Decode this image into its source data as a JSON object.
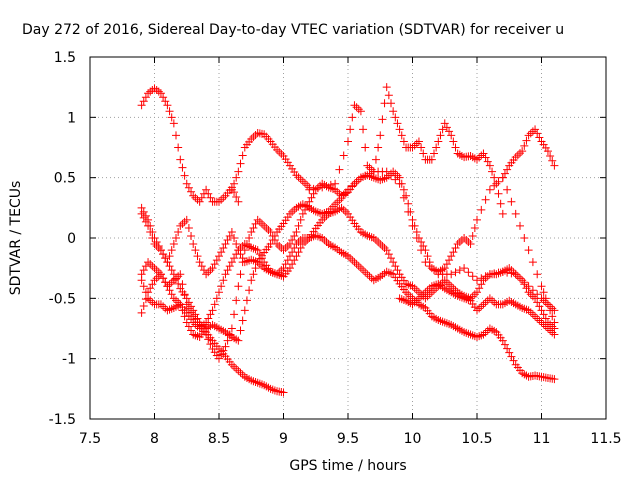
{
  "chart_data": {
    "type": "scatter",
    "title": "Day 272 of 2016, Sidereal Day-to-day VTEC variation (SDTVAR) for receiver u",
    "xlabel": "GPS time / hours",
    "ylabel": "SDTVAR / TECUs",
    "xlim": [
      7.5,
      11.5
    ],
    "ylim": [
      -1.5,
      1.5
    ],
    "xticks": [
      "7.5",
      "8",
      "8.5",
      "9",
      "9.5",
      "10",
      "10.5",
      "11",
      "11.5"
    ],
    "xtick_values": [
      7.5,
      8,
      8.5,
      9,
      9.5,
      10,
      10.5,
      11,
      11.5
    ],
    "yticks": [
      "1.5",
      "1",
      "0.5",
      "0",
      "-0.5",
      "-1",
      "-1.5"
    ],
    "ytick_values": [
      1.5,
      1,
      0.5,
      0,
      -0.5,
      -1,
      -1.5
    ],
    "grid": true,
    "marker": "plus",
    "color": "#ff0000",
    "series": [
      {
        "x": [
          7.9,
          7.95,
          8.0,
          8.05,
          8.1,
          8.15,
          8.2,
          8.25,
          8.3,
          8.35,
          8.4,
          8.45,
          8.5,
          8.55,
          8.6,
          8.65
        ],
        "y": [
          1.1,
          1.2,
          1.24,
          1.2,
          1.1,
          0.95,
          0.65,
          0.45,
          0.35,
          0.3,
          0.4,
          0.3,
          0.3,
          0.35,
          0.42,
          0.3
        ]
      },
      {
        "x": [
          8.6,
          8.65,
          8.7,
          8.75,
          8.8,
          8.85,
          8.9,
          8.95,
          9.0,
          9.05,
          9.1,
          9.15,
          9.2
        ],
        "y": [
          0.4,
          0.55,
          0.75,
          0.82,
          0.87,
          0.86,
          0.8,
          0.73,
          0.68,
          0.6,
          0.52,
          0.47,
          0.42
        ]
      },
      {
        "x": [
          9.2,
          9.3,
          9.4,
          9.5,
          9.55,
          9.6,
          9.65,
          9.7,
          9.75,
          9.8,
          9.85,
          9.9,
          9.95,
          10.0,
          10.05,
          10.1,
          10.15,
          10.2,
          10.25,
          10.3,
          10.35,
          10.4,
          10.45,
          10.5,
          10.55,
          10.6,
          10.65,
          10.7
        ],
        "y": [
          0.4,
          0.42,
          0.45,
          0.8,
          1.1,
          1.05,
          0.6,
          0.55,
          0.85,
          1.25,
          1.05,
          0.9,
          0.75,
          0.75,
          0.8,
          0.65,
          0.65,
          0.8,
          0.95,
          0.85,
          0.7,
          0.67,
          0.68,
          0.65,
          0.7,
          0.6,
          0.45,
          0.2
        ]
      },
      {
        "x": [
          10.7,
          10.75,
          10.8,
          10.85,
          10.9,
          10.95,
          11.0,
          11.05,
          11.1
        ],
        "y": [
          0.5,
          0.6,
          0.67,
          0.72,
          0.85,
          0.9,
          0.8,
          0.72,
          0.6
        ]
      },
      {
        "x": [
          7.9,
          7.95,
          8.0,
          8.05,
          8.1,
          8.15,
          8.2,
          8.25,
          8.3,
          8.35,
          8.4,
          8.45,
          8.5,
          8.55,
          8.6,
          8.65,
          8.7,
          8.75,
          8.8,
          8.85,
          8.9,
          8.95,
          9.0
        ],
        "y": [
          0.25,
          0.15,
          0.0,
          -0.1,
          -0.2,
          -0.3,
          -0.42,
          -0.5,
          -0.6,
          -0.7,
          -0.78,
          -0.85,
          -0.92,
          -0.98,
          -1.05,
          -1.1,
          -1.15,
          -1.18,
          -1.2,
          -1.22,
          -1.25,
          -1.27,
          -1.28
        ]
      },
      {
        "x": [
          7.9,
          7.95,
          8.0,
          8.05,
          8.1,
          8.15,
          8.2,
          8.25,
          8.3,
          8.35,
          8.4,
          8.45,
          8.5,
          8.55,
          8.6,
          8.65,
          8.7,
          8.75,
          8.8,
          8.85,
          8.9,
          8.95,
          9.0,
          9.05,
          9.1,
          9.15,
          9.2,
          9.25,
          9.3,
          9.35,
          9.4,
          9.45,
          9.5,
          9.6,
          9.7,
          9.8,
          9.9,
          10.0,
          10.1,
          10.2,
          10.3,
          10.4,
          10.5,
          10.6,
          10.7,
          10.8,
          10.9,
          11.0,
          11.05,
          11.1
        ],
        "y": [
          -0.62,
          -0.45,
          -0.35,
          -0.3,
          -0.4,
          -0.5,
          -0.55,
          -0.7,
          -0.8,
          -0.82,
          -0.75,
          -0.72,
          -0.75,
          -0.78,
          -0.82,
          -0.85,
          -0.6,
          -0.35,
          -0.2,
          -0.12,
          -0.05,
          0.05,
          0.12,
          0.2,
          0.25,
          0.28,
          0.25,
          0.22,
          0.2,
          0.22,
          0.28,
          0.33,
          0.4,
          0.5,
          0.55,
          0.55,
          0.45,
          0.1,
          -0.2,
          -0.3,
          -0.3,
          -0.25,
          -0.35,
          -0.3,
          -0.28,
          -0.3,
          -0.4,
          -0.5,
          -0.55,
          -0.6
        ]
      },
      {
        "x": [
          7.9,
          7.95,
          8.0,
          8.05,
          8.1,
          8.15,
          8.2,
          8.25,
          8.3,
          8.35,
          8.4,
          8.45,
          8.5,
          8.55,
          8.6,
          8.65,
          8.7,
          8.75,
          8.8,
          8.85,
          8.9,
          8.95,
          9.0,
          9.05,
          9.1,
          9.15,
          9.2,
          9.25,
          9.3,
          9.35,
          9.4,
          9.45,
          9.5,
          9.55,
          9.6,
          9.65,
          9.7,
          9.75,
          9.8,
          9.85,
          9.9,
          9.95,
          10.0,
          10.05,
          10.1,
          10.15,
          10.2,
          10.25,
          10.3,
          10.35,
          10.4,
          10.45,
          10.5,
          10.6,
          10.7,
          10.8,
          10.9,
          11.0,
          11.05,
          11.1
        ],
        "y": [
          -0.3,
          -0.2,
          -0.25,
          -0.3,
          -0.4,
          -0.35,
          -0.3,
          -0.55,
          -0.65,
          -0.72,
          -0.8,
          -0.92,
          -1.0,
          -0.9,
          -0.75,
          -0.4,
          -0.1,
          0.05,
          0.15,
          0.1,
          0.05,
          -0.05,
          -0.1,
          -0.05,
          0.05,
          0.2,
          0.3,
          0.4,
          0.45,
          0.42,
          0.4,
          0.35,
          0.38,
          0.45,
          0.5,
          0.52,
          0.5,
          0.48,
          0.5,
          0.55,
          0.5,
          0.35,
          0.15,
          0.0,
          -0.1,
          -0.25,
          -0.28,
          -0.25,
          -0.15,
          -0.05,
          0.0,
          -0.05,
          0.15,
          0.4,
          0.5,
          0.2,
          -0.1,
          -0.4,
          -0.55,
          -0.7
        ]
      },
      {
        "x": [
          7.9,
          7.95,
          8.0,
          8.05,
          8.1,
          8.15,
          8.2,
          8.25,
          8.3,
          8.35,
          8.4,
          8.45,
          8.5,
          8.55,
          8.6,
          8.65,
          8.7,
          8.75,
          8.8,
          8.85,
          8.9,
          8.95,
          9.0,
          9.05,
          9.1,
          9.15,
          9.2,
          9.25,
          9.3,
          9.35,
          9.4,
          9.45,
          9.5,
          9.55,
          9.6,
          9.65,
          9.7,
          9.75,
          9.8,
          9.85,
          9.9,
          9.95,
          10.0,
          10.05,
          10.1,
          10.15,
          10.2,
          10.25,
          10.3,
          10.35,
          10.4,
          10.45,
          10.5,
          10.55,
          10.6,
          10.65,
          10.7,
          10.75,
          10.8,
          10.85,
          10.9,
          10.95,
          11.0,
          11.05,
          11.1
        ],
        "y": [
          0.2,
          0.1,
          -0.05,
          -0.1,
          -0.2,
          -0.05,
          0.1,
          0.15,
          -0.05,
          -0.2,
          -0.3,
          -0.25,
          -0.15,
          -0.05,
          0.05,
          -0.1,
          -0.2,
          -0.18,
          -0.2,
          -0.25,
          -0.28,
          -0.3,
          -0.32,
          -0.25,
          -0.15,
          -0.05,
          0.0,
          0.08,
          0.15,
          0.2,
          0.22,
          0.25,
          0.2,
          0.12,
          0.05,
          0.02,
          0.0,
          -0.05,
          -0.1,
          -0.2,
          -0.3,
          -0.38,
          -0.4,
          -0.45,
          -0.5,
          -0.45,
          -0.4,
          -0.35,
          -0.4,
          -0.45,
          -0.48,
          -0.5,
          -0.45,
          -0.35,
          -0.3,
          -0.3,
          -0.28,
          -0.25,
          -0.3,
          -0.35,
          -0.45,
          -0.5,
          -0.6,
          -0.7,
          -0.75
        ]
      },
      {
        "x": [
          7.9,
          7.95,
          8.0,
          8.05,
          8.1,
          8.15,
          8.2,
          8.25,
          8.3,
          8.35,
          8.4,
          8.45,
          8.5,
          8.55,
          8.6,
          8.65,
          8.7,
          8.75,
          8.8,
          8.85,
          8.9,
          8.95,
          9.0,
          9.05,
          9.1,
          9.15,
          9.2,
          9.25,
          9.3,
          9.35,
          9.4,
          9.45,
          9.5,
          9.55,
          9.6,
          9.65,
          9.7,
          9.75,
          9.8,
          9.85,
          9.9,
          9.95,
          10.0,
          10.05,
          10.1,
          10.15,
          10.2,
          10.25,
          10.3,
          10.35,
          10.4,
          10.45,
          10.5,
          10.55,
          10.6,
          10.65,
          10.7,
          10.75,
          10.8,
          10.85,
          10.9,
          10.95,
          11.0,
          11.05,
          11.1
        ],
        "y": [
          -0.35,
          -0.5,
          -0.55,
          -0.55,
          -0.6,
          -0.58,
          -0.55,
          -0.62,
          -0.7,
          -0.75,
          -0.7,
          -0.6,
          -0.45,
          -0.3,
          -0.2,
          -0.1,
          -0.05,
          -0.08,
          -0.1,
          -0.2,
          -0.28,
          -0.3,
          -0.25,
          -0.15,
          -0.05,
          0.0,
          0.0,
          0.02,
          0.0,
          -0.05,
          -0.08,
          -0.12,
          -0.15,
          -0.2,
          -0.25,
          -0.3,
          -0.35,
          -0.32,
          -0.28,
          -0.3,
          -0.38,
          -0.45,
          -0.5,
          -0.55,
          -0.58,
          -0.65,
          -0.68,
          -0.7,
          -0.72,
          -0.75,
          -0.78,
          -0.8,
          -0.82,
          -0.8,
          -0.75,
          -0.78,
          -0.85,
          -0.95,
          -1.05,
          -1.12,
          -1.15,
          -1.14,
          -1.15,
          -1.16,
          -1.17
        ]
      },
      {
        "x": [
          9.9,
          9.95,
          10.0,
          10.05,
          10.1,
          10.15,
          10.2,
          10.25,
          10.3,
          10.35,
          10.4,
          10.45,
          10.5,
          10.55,
          10.6,
          10.65,
          10.7,
          10.75,
          10.8,
          10.85,
          10.9,
          10.95,
          11.0,
          11.05,
          11.1
        ],
        "y": [
          -0.5,
          -0.52,
          -0.55,
          -0.5,
          -0.45,
          -0.4,
          -0.38,
          -0.42,
          -0.45,
          -0.48,
          -0.5,
          -0.52,
          -0.6,
          -0.55,
          -0.5,
          -0.55,
          -0.55,
          -0.52,
          -0.55,
          -0.58,
          -0.6,
          -0.65,
          -0.7,
          -0.75,
          -0.8
        ]
      }
    ]
  }
}
